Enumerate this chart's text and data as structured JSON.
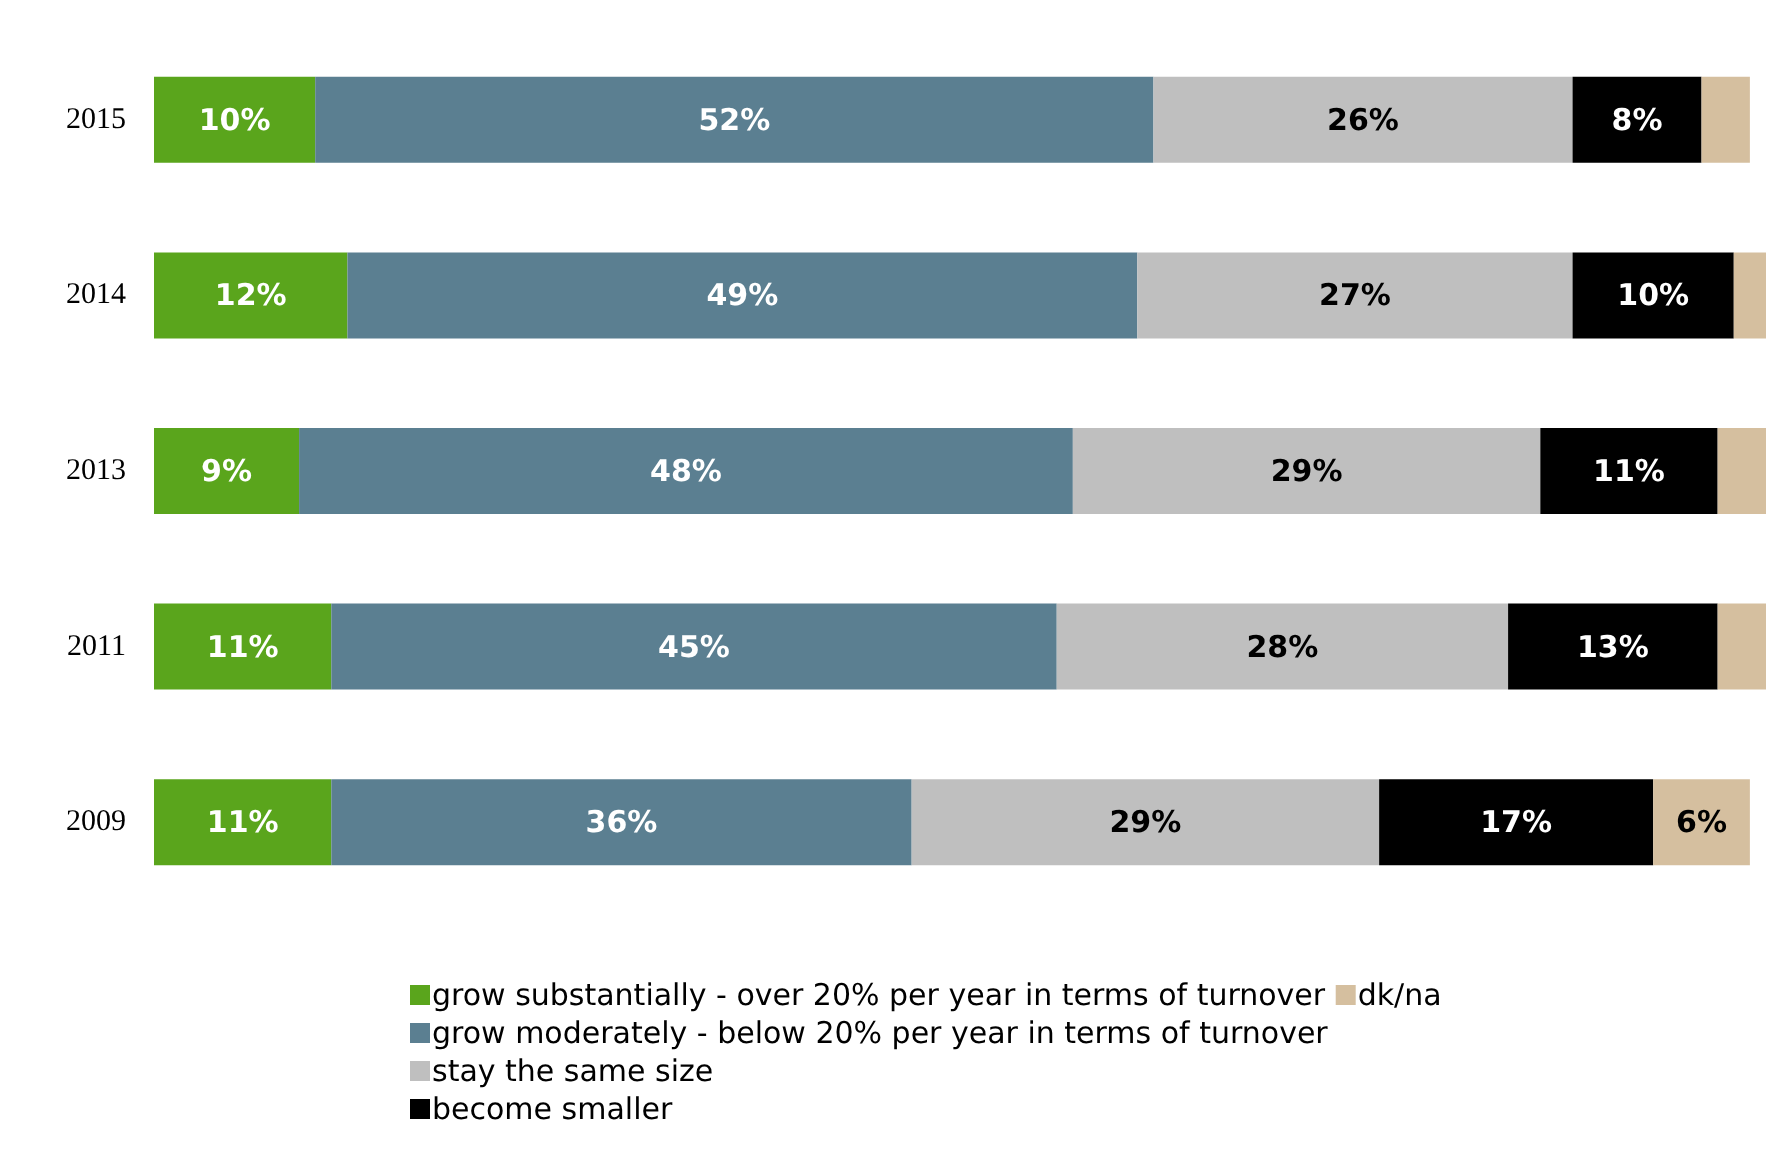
{
  "chart_data": {
    "type": "bar",
    "orientation": "horizontal",
    "stacked": true,
    "legend": "bottom",
    "grid": false,
    "xlim": [
      0,
      100
    ],
    "categories": [
      "2015",
      "2014",
      "2013",
      "2011",
      "2009"
    ],
    "series": [
      {
        "name": "grow substantially - over 20% per year in terms of turnover",
        "color": "#5aa51c",
        "values": [
          10,
          12,
          9,
          11,
          11
        ],
        "value_labels": [
          "10%",
          "12%",
          "9%",
          "11%",
          "11%"
        ]
      },
      {
        "name": "grow moderately - below 20% per year in terms of turnover",
        "color": "#5b7f91",
        "values": [
          52,
          49,
          48,
          45,
          36
        ],
        "value_labels": [
          "52%",
          "49%",
          "48%",
          "45%",
          "36%"
        ]
      },
      {
        "name": "stay the same size",
        "color": "#bfbfbf",
        "values": [
          26,
          27,
          29,
          28,
          29
        ],
        "value_labels": [
          "26%",
          "27%",
          "29%",
          "28%",
          "29%"
        ]
      },
      {
        "name": "become smaller",
        "color": "#000000",
        "values": [
          8,
          10,
          11,
          13,
          17
        ],
        "value_labels": [
          "8%",
          "10%",
          "11%",
          "13%",
          "17%"
        ]
      },
      {
        "name": "dk/na",
        "color": "#d5bf9f",
        "values": [
          3,
          2,
          3,
          3,
          6
        ],
        "value_labels": [
          null,
          null,
          null,
          null,
          "6%"
        ]
      }
    ]
  }
}
